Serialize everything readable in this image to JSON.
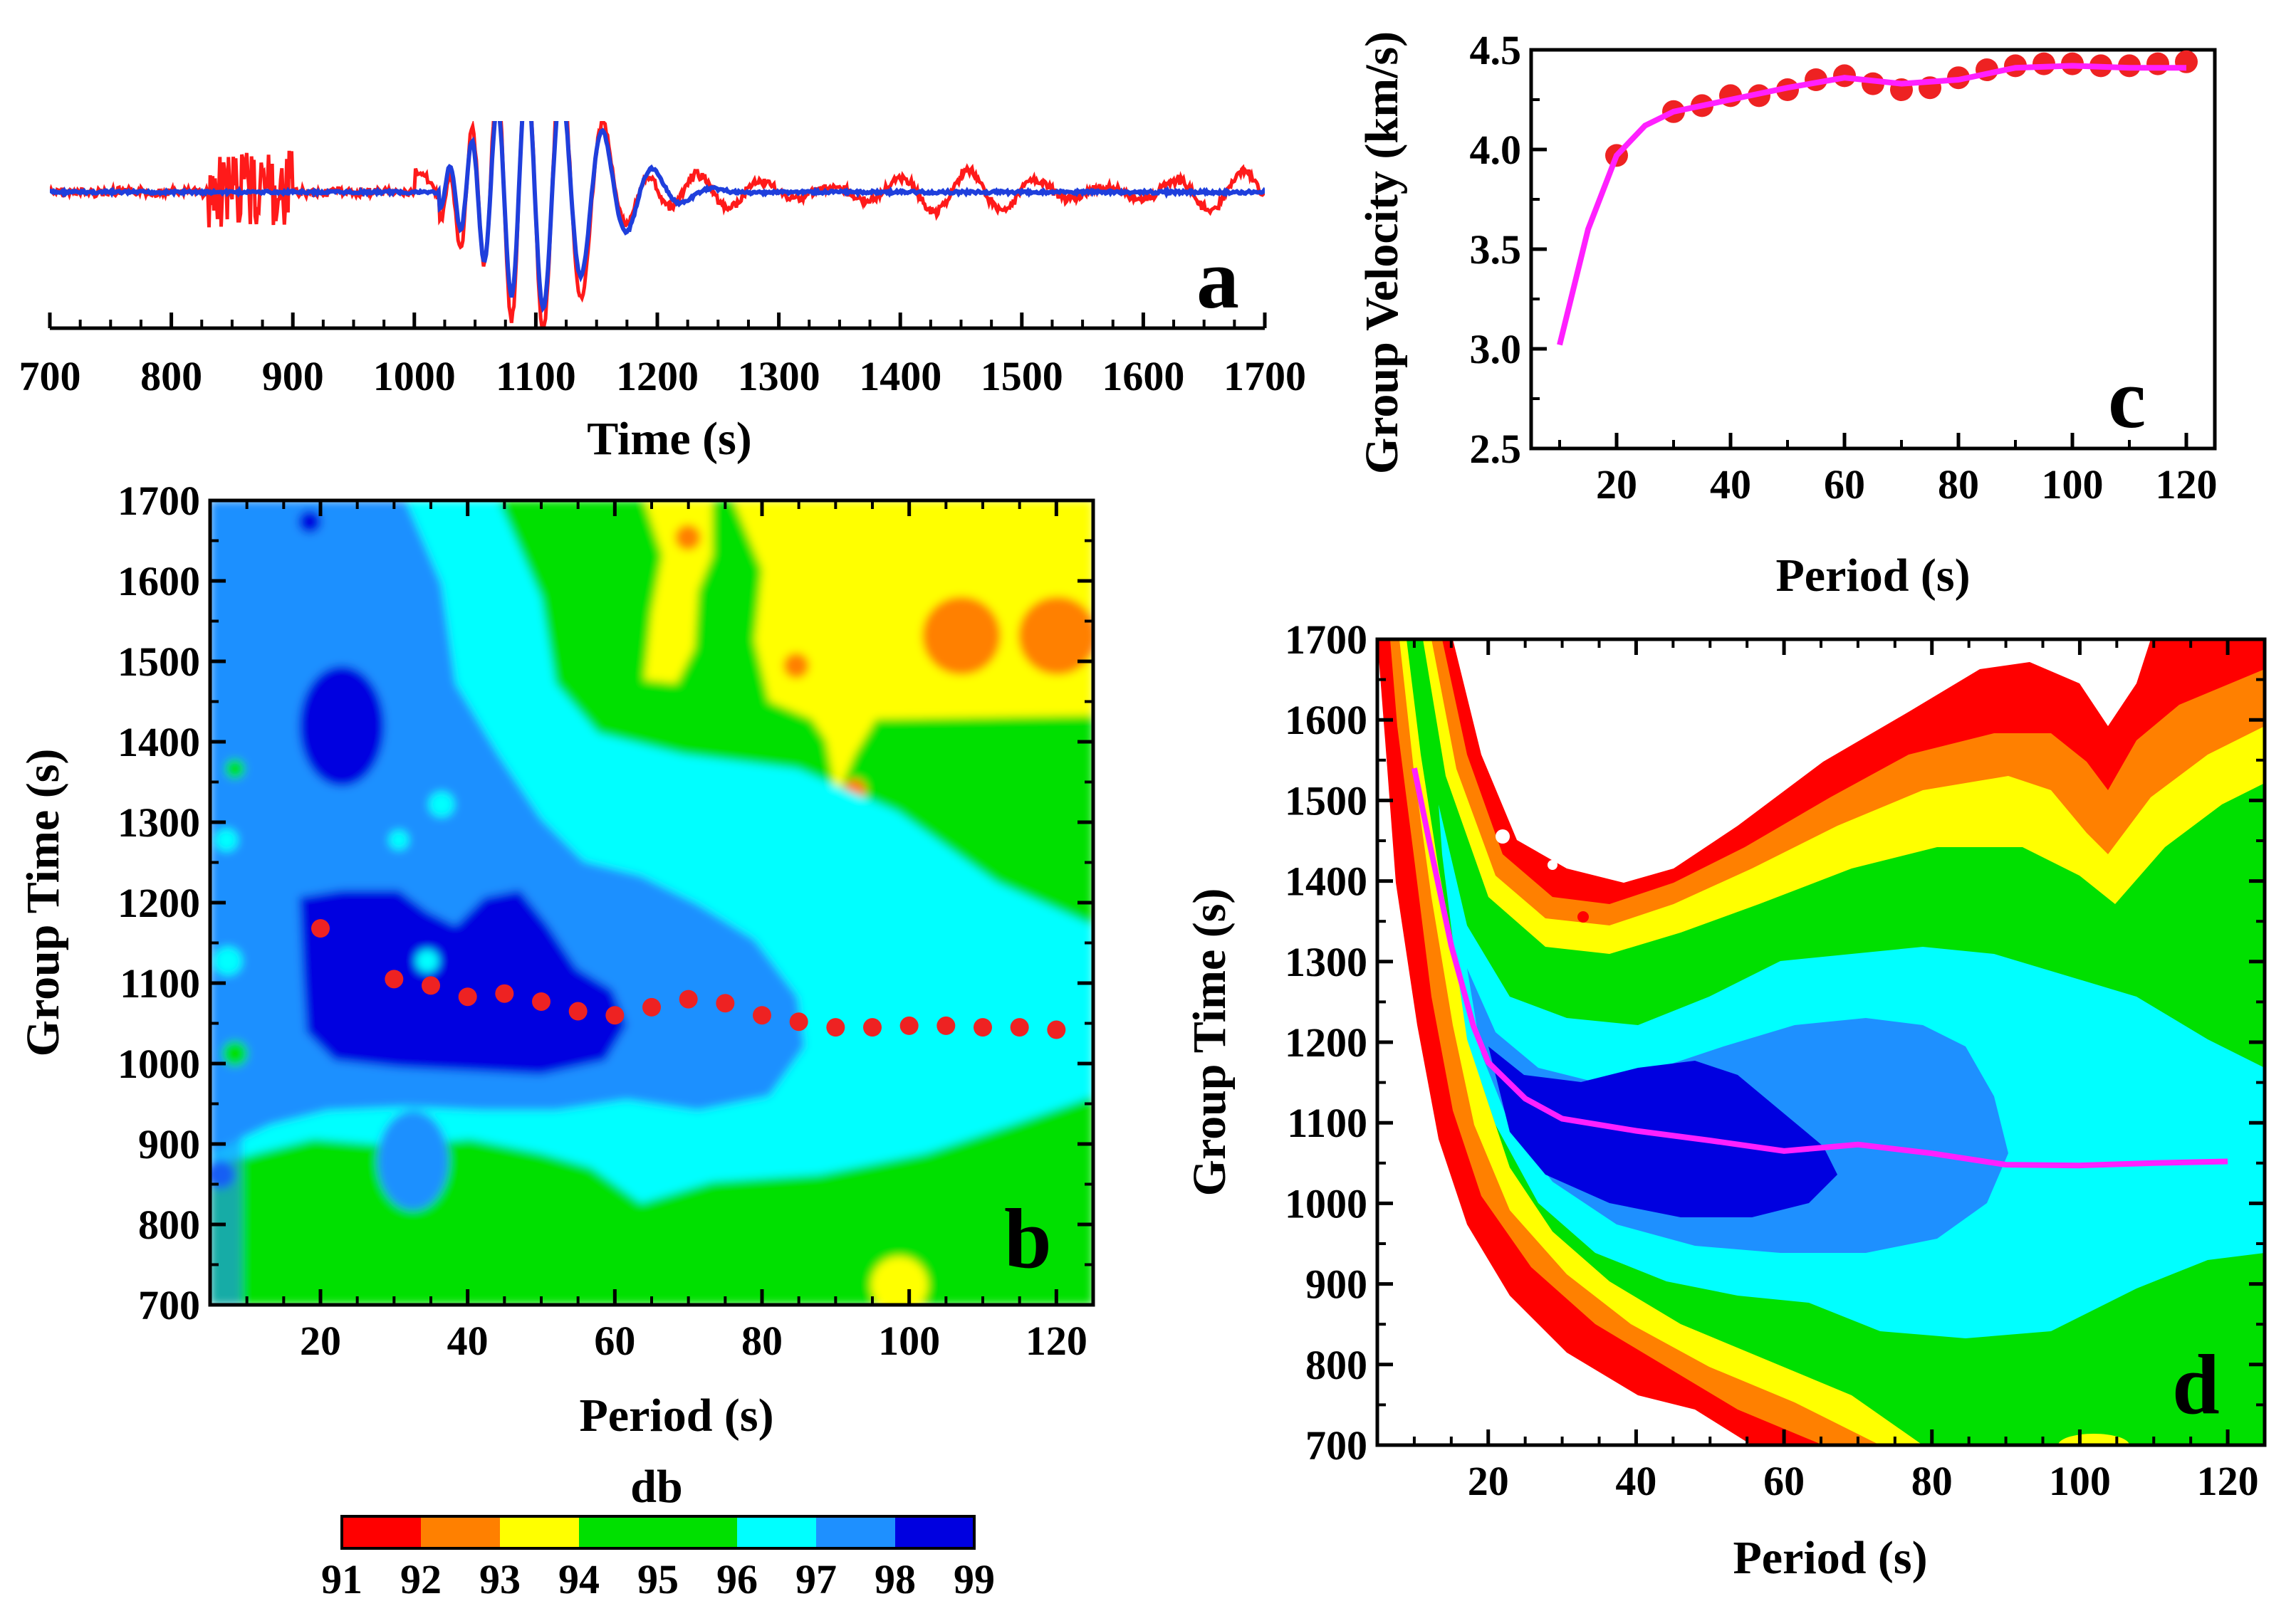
{
  "colors": {
    "red_trace": "#ff1a1a",
    "blue_trace": "#1f3fdc",
    "dispersion_points": "#ee2222",
    "dispersion_curve": "#ff20ff",
    "levels": [
      "#ff0000",
      "#ff8000",
      "#ffff00",
      "#00e000",
      "#00ffff",
      "#1e90ff",
      "#0000e0"
    ]
  },
  "colorbar": {
    "title": "db",
    "ticks": [
      "91",
      "92",
      "93",
      "94",
      "95",
      "96",
      "97",
      "98",
      "99"
    ],
    "colors": [
      "#ff0000",
      "#ff8000",
      "#ffff00",
      "#00e000",
      "#00e000",
      "#00ffff",
      "#1e90ff",
      "#0000e0"
    ]
  },
  "chart_data": [
    {
      "panel": "a",
      "type": "line",
      "letter": "a",
      "xlabel": "Time (s)",
      "ylabel": "",
      "xlim": [
        700,
        1700
      ],
      "xticks": [
        "700",
        "800",
        "900",
        "1000",
        "1100",
        "1200",
        "1300",
        "1400",
        "1500",
        "1600",
        "1700"
      ],
      "series": [
        {
          "color": "#ff1a1a",
          "description_free": true,
          "x": [
            700,
            1700
          ]
        },
        {
          "color": "#1f3fdc",
          "x": [
            700,
            1700
          ]
        }
      ]
    },
    {
      "panel": "c",
      "type": "line",
      "letter": "c",
      "xlabel": "Period (s)",
      "ylabel": "Group Velocity (km/s)",
      "xlim": [
        5,
        125
      ],
      "ylim": [
        2.5,
        4.5
      ],
      "xticks": [
        "20",
        "40",
        "60",
        "80",
        "100",
        "120"
      ],
      "yticks": [
        "2.5",
        "3.0",
        "3.5",
        "4.0",
        "4.5"
      ],
      "points": {
        "x": [
          20,
          30,
          35,
          40,
          45,
          50,
          55,
          60,
          65,
          70,
          75,
          80,
          85,
          90,
          95,
          100,
          105,
          110,
          115,
          120
        ],
        "y": [
          3.97,
          4.19,
          4.22,
          4.27,
          4.27,
          4.3,
          4.35,
          4.37,
          4.33,
          4.3,
          4.31,
          4.36,
          4.4,
          4.42,
          4.43,
          4.43,
          4.42,
          4.42,
          4.43,
          4.44
        ]
      },
      "curve": {
        "x": [
          10,
          15,
          20,
          25,
          30,
          40,
          50,
          60,
          70,
          80,
          90,
          100,
          110,
          120
        ],
        "y": [
          3.02,
          3.6,
          3.97,
          4.12,
          4.19,
          4.25,
          4.31,
          4.36,
          4.33,
          4.35,
          4.41,
          4.42,
          4.41,
          4.41
        ]
      }
    },
    {
      "panel": "b",
      "type": "heatmap",
      "letter": "b",
      "xlabel": "Period (s)",
      "ylabel": "Group Time (s)",
      "xlim": [
        5,
        125
      ],
      "ylim": [
        700,
        1700
      ],
      "xticks": [
        "20",
        "40",
        "60",
        "80",
        "100",
        "120"
      ],
      "yticks": [
        "700",
        "800",
        "900",
        "1000",
        "1100",
        "1200",
        "1300",
        "1400",
        "1500",
        "1600",
        "1700"
      ],
      "points": {
        "x": [
          20,
          30,
          35,
          40,
          45,
          50,
          55,
          60,
          65,
          70,
          75,
          80,
          85,
          90,
          95,
          100,
          105,
          110,
          115,
          120
        ],
        "y": [
          1168,
          1105,
          1097,
          1083,
          1087,
          1077,
          1065,
          1060,
          1070,
          1080,
          1075,
          1060,
          1052,
          1045,
          1045,
          1047,
          1047,
          1045,
          1045,
          1042
        ]
      }
    },
    {
      "panel": "d",
      "type": "heatmap",
      "letter": "d",
      "xlabel": "Period (s)",
      "ylabel": "Group Time (s)",
      "xlim": [
        5,
        125
      ],
      "ylim": [
        700,
        1700
      ],
      "xticks": [
        "20",
        "40",
        "60",
        "80",
        "100",
        "120"
      ],
      "yticks": [
        "700",
        "800",
        "900",
        "1000",
        "1100",
        "1200",
        "1300",
        "1400",
        "1500",
        "1600",
        "1700"
      ],
      "curve": {
        "x": [
          10,
          12,
          15,
          18,
          20,
          25,
          30,
          40,
          50,
          60,
          70,
          80,
          90,
          100,
          110,
          120
        ],
        "y": [
          1540,
          1450,
          1320,
          1220,
          1175,
          1130,
          1105,
          1090,
          1078,
          1065,
          1073,
          1062,
          1048,
          1047,
          1050,
          1052
        ]
      }
    }
  ]
}
